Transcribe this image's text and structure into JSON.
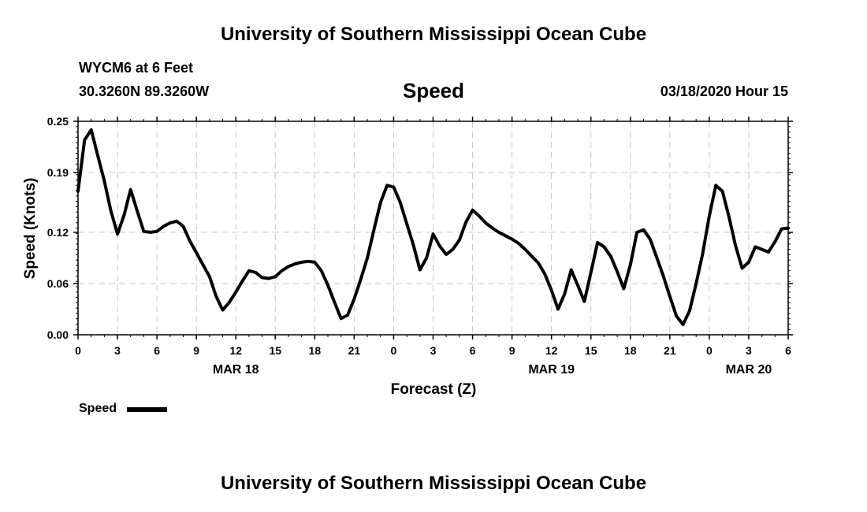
{
  "header": {
    "title": "University of Southern Mississippi Ocean Cube",
    "station": "WYCM6 at 6 Feet",
    "coordinates": "30.3260N 89.3260W",
    "datetime": "03/18/2020 Hour 15"
  },
  "footer": {
    "title": "University of Southern Mississippi Ocean Cube"
  },
  "legend": {
    "label": "Speed",
    "color": "#000000"
  },
  "chart_data": {
    "type": "line",
    "title": "Speed",
    "xlabel": "Forecast (Z)",
    "ylabel": "Speed (Knots)",
    "ylim": [
      0,
      0.25
    ],
    "xlim": [
      0,
      54
    ],
    "grid": true,
    "legend_position": "bottom-left",
    "yticks": [
      "0.25",
      "0.19",
      "0.12",
      "0.06",
      "0.00"
    ],
    "ytick_values": [
      0.25,
      0.19,
      0.12,
      0.06,
      0.0
    ],
    "xticks": [
      "0",
      "3",
      "6",
      "9",
      "12",
      "15",
      "18",
      "21",
      "0",
      "3",
      "6",
      "9",
      "12",
      "15",
      "18",
      "21",
      "0",
      "3",
      "6"
    ],
    "date_labels": [
      {
        "label": "MAR 18",
        "at": 12
      },
      {
        "label": "MAR 19",
        "at": 36
      },
      {
        "label": "MAR 20",
        "at": 51
      }
    ],
    "series": [
      {
        "name": "Speed",
        "color": "#000000",
        "points": [
          [
            0,
            0.168
          ],
          [
            0.5,
            0.228
          ],
          [
            1,
            0.24
          ],
          [
            1.5,
            0.21
          ],
          [
            2,
            0.18
          ],
          [
            2.5,
            0.145
          ],
          [
            3,
            0.118
          ],
          [
            3.5,
            0.14
          ],
          [
            4,
            0.17
          ],
          [
            4.5,
            0.145
          ],
          [
            5,
            0.121
          ],
          [
            5.5,
            0.12
          ],
          [
            6,
            0.121
          ],
          [
            6.5,
            0.127
          ],
          [
            7,
            0.131
          ],
          [
            7.5,
            0.133
          ],
          [
            8,
            0.127
          ],
          [
            8.5,
            0.11
          ],
          [
            9,
            0.096
          ],
          [
            9.5,
            0.082
          ],
          [
            10,
            0.068
          ],
          [
            10.5,
            0.045
          ],
          [
            11,
            0.029
          ],
          [
            11.5,
            0.038
          ],
          [
            12,
            0.05
          ],
          [
            12.5,
            0.063
          ],
          [
            13,
            0.075
          ],
          [
            13.5,
            0.073
          ],
          [
            14,
            0.067
          ],
          [
            14.5,
            0.066
          ],
          [
            15,
            0.068
          ],
          [
            15.5,
            0.075
          ],
          [
            16,
            0.08
          ],
          [
            16.5,
            0.083
          ],
          [
            17,
            0.085
          ],
          [
            17.5,
            0.086
          ],
          [
            18,
            0.085
          ],
          [
            18.5,
            0.075
          ],
          [
            19,
            0.058
          ],
          [
            19.5,
            0.038
          ],
          [
            20,
            0.019
          ],
          [
            20.5,
            0.023
          ],
          [
            21,
            0.042
          ],
          [
            21.5,
            0.065
          ],
          [
            22,
            0.09
          ],
          [
            22.5,
            0.123
          ],
          [
            23,
            0.155
          ],
          [
            23.5,
            0.175
          ],
          [
            24,
            0.173
          ],
          [
            24.5,
            0.155
          ],
          [
            25,
            0.13
          ],
          [
            25.5,
            0.105
          ],
          [
            26,
            0.076
          ],
          [
            26.5,
            0.09
          ],
          [
            27,
            0.118
          ],
          [
            27.5,
            0.104
          ],
          [
            28,
            0.094
          ],
          [
            28.5,
            0.1
          ],
          [
            29,
            0.111
          ],
          [
            29.5,
            0.132
          ],
          [
            30,
            0.146
          ],
          [
            30.5,
            0.139
          ],
          [
            31,
            0.131
          ],
          [
            31.5,
            0.125
          ],
          [
            32,
            0.12
          ],
          [
            32.5,
            0.116
          ],
          [
            33,
            0.112
          ],
          [
            33.5,
            0.107
          ],
          [
            34,
            0.1
          ],
          [
            34.5,
            0.092
          ],
          [
            35,
            0.084
          ],
          [
            35.5,
            0.071
          ],
          [
            36,
            0.052
          ],
          [
            36.5,
            0.03
          ],
          [
            37,
            0.048
          ],
          [
            37.5,
            0.076
          ],
          [
            38,
            0.058
          ],
          [
            38.5,
            0.039
          ],
          [
            39,
            0.073
          ],
          [
            39.5,
            0.108
          ],
          [
            40,
            0.103
          ],
          [
            40.5,
            0.092
          ],
          [
            41,
            0.074
          ],
          [
            41.5,
            0.054
          ],
          [
            42,
            0.082
          ],
          [
            42.5,
            0.12
          ],
          [
            43,
            0.123
          ],
          [
            43.5,
            0.112
          ],
          [
            44,
            0.091
          ],
          [
            44.5,
            0.069
          ],
          [
            45,
            0.045
          ],
          [
            45.5,
            0.022
          ],
          [
            46,
            0.012
          ],
          [
            46.5,
            0.028
          ],
          [
            47,
            0.06
          ],
          [
            47.5,
            0.095
          ],
          [
            48,
            0.139
          ],
          [
            48.5,
            0.175
          ],
          [
            49,
            0.168
          ],
          [
            49.5,
            0.138
          ],
          [
            50,
            0.104
          ],
          [
            50.5,
            0.078
          ],
          [
            51,
            0.085
          ],
          [
            51.5,
            0.103
          ],
          [
            52,
            0.1
          ],
          [
            52.5,
            0.097
          ],
          [
            53,
            0.109
          ],
          [
            53.5,
            0.124
          ],
          [
            54,
            0.125
          ]
        ]
      }
    ]
  }
}
